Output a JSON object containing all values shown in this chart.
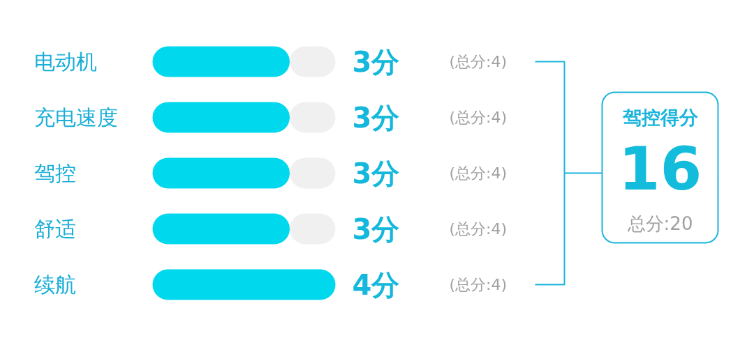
{
  "chart_data": {
    "type": "bar",
    "orientation": "horizontal",
    "stacked": true,
    "categories": [
      "电动机",
      "充电速度",
      "驾控",
      "舒适",
      "续航"
    ],
    "series": [
      {
        "color": "#00d8ee",
        "values": [
          3,
          3,
          3,
          3,
          4
        ],
        "value_labels": [
          "3分",
          "3分",
          "3分",
          "3分",
          "4分"
        ]
      },
      {
        "color": "#f0f0f0",
        "values": [
          1,
          1,
          1,
          1,
          0
        ]
      }
    ],
    "annotations": [
      "(总分:4)",
      "(总分:4)",
      "(总分:4)",
      "(总分:4)",
      "(总分:4)",
      "驾控得分",
      "16",
      "总分:20"
    ]
  }
}
